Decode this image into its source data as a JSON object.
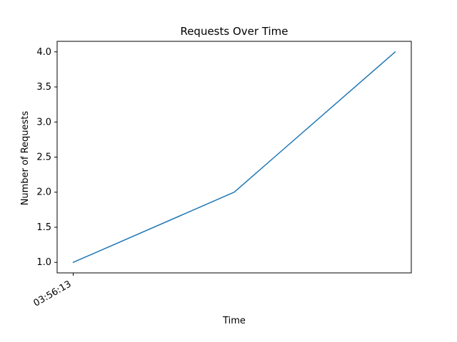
{
  "chart_data": {
    "type": "line",
    "title": "Requests Over Time",
    "xlabel": "Time",
    "ylabel": "Number of Requests",
    "x_tick_labels": [
      {
        "label": "03:56:13",
        "x": 0
      }
    ],
    "y_ticks": [
      1.0,
      1.5,
      2.0,
      2.5,
      3.0,
      3.5,
      4.0
    ],
    "y_tick_labels": [
      "1.0",
      "1.5",
      "2.0",
      "2.5",
      "3.0",
      "3.5",
      "4.0"
    ],
    "xlim": [
      -0.1,
      2.1
    ],
    "ylim": [
      0.85,
      4.15
    ],
    "series": [
      {
        "x": [
          0,
          1,
          2
        ],
        "values": [
          1,
          2,
          4
        ],
        "color": "#1f77b4"
      }
    ],
    "grid": false,
    "legend": "none"
  }
}
